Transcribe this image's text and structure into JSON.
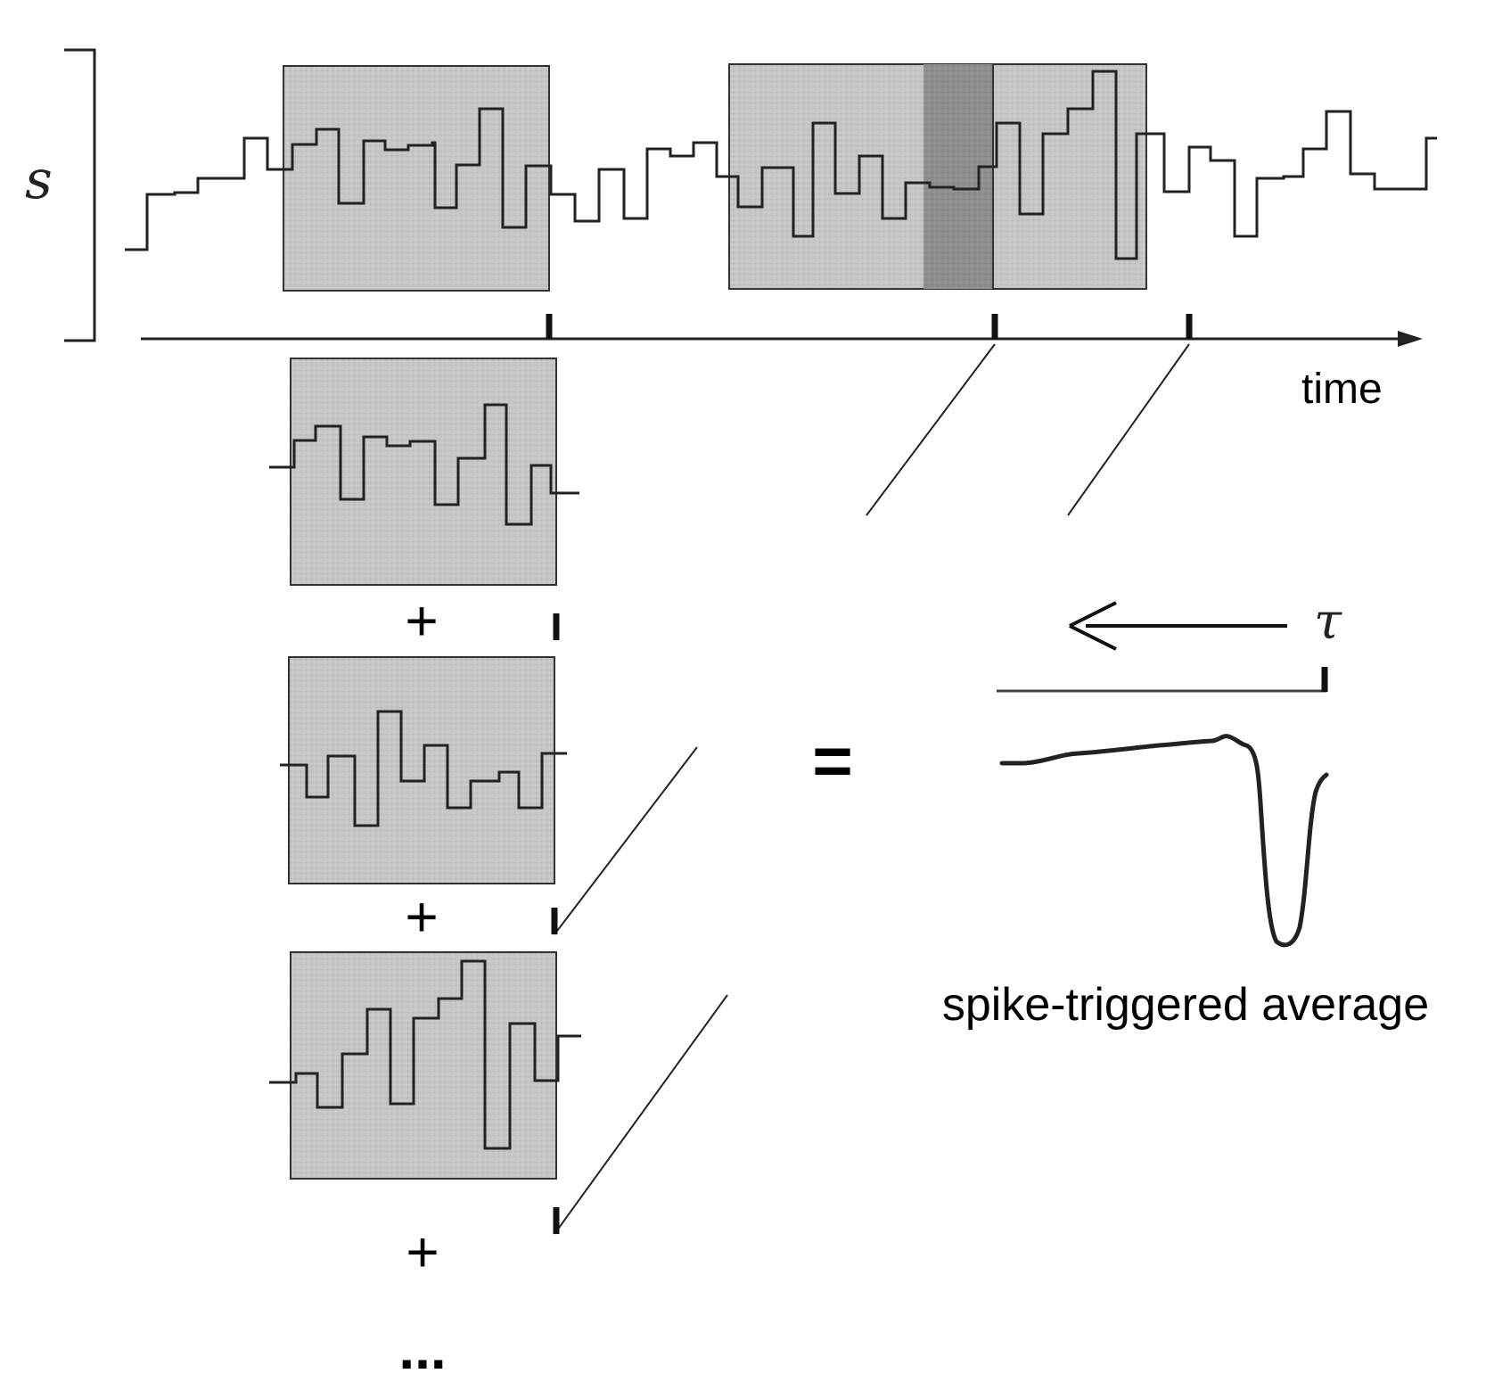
{
  "labels": {
    "stimulus": "s",
    "time": "time",
    "tau": "τ",
    "equals": "=",
    "plus": "+",
    "ellipsis": "...",
    "result": "spike-triggered average"
  },
  "colors": {
    "ink": "#222222",
    "window_fill": "#c4c4c4",
    "window_dark": "#8c8c8c",
    "background": "#ffffff"
  },
  "diagram": {
    "stimulus_levels": [
      0,
      3,
      3,
      2,
      2,
      4,
      4,
      2,
      3,
      3,
      1,
      1,
      2,
      2,
      2,
      0,
      2,
      3,
      3,
      1,
      1,
      2,
      2,
      4,
      4,
      2,
      2,
      3,
      3,
      0,
      2,
      2,
      1,
      2,
      2,
      3,
      3,
      1,
      1,
      2,
      3,
      3,
      0,
      1,
      1,
      2,
      3,
      3,
      2,
      1,
      1,
      0,
      2,
      2,
      2,
      3,
      3,
      4,
      2,
      2,
      3,
      2,
      2,
      3
    ],
    "spike_times": [
      0.29,
      0.6,
      0.74
    ],
    "snippet_count": 3,
    "sta_profile": "flat baseline, slight rise, sharp negative dip just before spike"
  }
}
